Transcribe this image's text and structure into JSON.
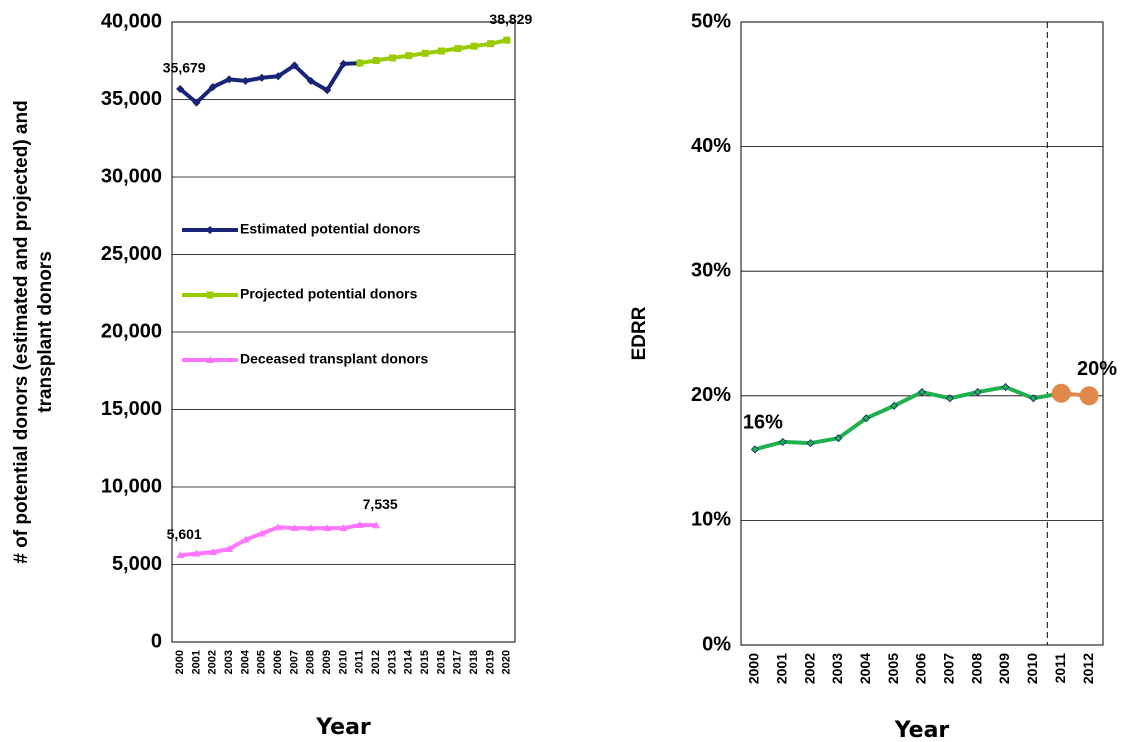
{
  "chart_data": [
    {
      "type": "line",
      "ylabel": [
        "# of potential donors (estimated and projected) and",
        "transplant donors"
      ],
      "xlabel": "Year",
      "categories": [
        "2000",
        "2001",
        "2002",
        "2003",
        "2004",
        "2005",
        "2006",
        "2007",
        "2008",
        "2009",
        "2010",
        "2011",
        "2012",
        "2013",
        "2014",
        "2015",
        "2016",
        "2017",
        "2018",
        "2019",
        "2020"
      ],
      "series": [
        {
          "name": "Estimated potential donors",
          "color": "#1a2476",
          "marker": "diamond",
          "values": [
            35679,
            34800,
            35800,
            36300,
            36200,
            36400,
            36500,
            37200,
            36200,
            35600,
            37300,
            37350,
            null,
            null,
            null,
            null,
            null,
            null,
            null,
            null,
            null
          ],
          "value_labels": [
            "35,679",
            null,
            null,
            null,
            null,
            null,
            null,
            null,
            null,
            null,
            null,
            null,
            null,
            null,
            null,
            null,
            null,
            null,
            null,
            null,
            null
          ]
        },
        {
          "name": "Projected potential donors",
          "color": "#99cc00",
          "marker": "square",
          "values": [
            null,
            null,
            null,
            null,
            null,
            null,
            null,
            null,
            null,
            null,
            null,
            37350,
            37520,
            37680,
            37830,
            37980,
            38130,
            38290,
            38440,
            38600,
            38829
          ],
          "value_labels": [
            null,
            null,
            null,
            null,
            null,
            null,
            null,
            null,
            null,
            null,
            null,
            null,
            null,
            null,
            null,
            null,
            null,
            null,
            null,
            null,
            "38,829"
          ]
        },
        {
          "name": "Deceased transplant donors",
          "color": "#ff77ff",
          "marker": "triangle",
          "values": [
            5601,
            5700,
            5800,
            6000,
            6600,
            7000,
            7400,
            7350,
            7350,
            7350,
            7350,
            7550,
            7535,
            null,
            null,
            null,
            null,
            null,
            null,
            null,
            null
          ],
          "value_labels": [
            "5,601",
            null,
            null,
            null,
            null,
            null,
            null,
            null,
            null,
            null,
            null,
            null,
            "7,535",
            null,
            null,
            null,
            null,
            null,
            null,
            null,
            null
          ]
        }
      ],
      "ylim": [
        0,
        40000
      ],
      "yticks": [
        0,
        {
          "value": 5000,
          "label": "5,000"
        },
        {
          "value": 10000,
          "label": "10,000"
        },
        {
          "value": 15000,
          "label": "15,000"
        },
        {
          "value": 20000,
          "label": "20,000"
        },
        {
          "value": 25000,
          "label": "25,000"
        },
        {
          "value": 30000,
          "label": "30,000"
        },
        {
          "value": 35000,
          "label": "35,000"
        },
        {
          "value": 40000,
          "label": "40,000"
        }
      ],
      "grid": true,
      "legend": "center-left"
    },
    {
      "type": "line",
      "ylabel": [
        "EDRR"
      ],
      "xlabel": "Year",
      "categories": [
        "2000",
        "2001",
        "2002",
        "2003",
        "2004",
        "2005",
        "2006",
        "2007",
        "2008",
        "2009",
        "2010",
        "2011",
        "2012"
      ],
      "series": [
        {
          "color": "#1fb050",
          "marker": "diamond",
          "values": [
            15.7,
            16.3,
            16.2,
            16.6,
            18.2,
            19.2,
            20.3,
            19.8,
            20.3,
            20.7,
            19.8,
            20.2,
            null
          ],
          "value_labels": [
            "16%",
            null,
            null,
            null,
            null,
            null,
            null,
            null,
            null,
            null,
            null,
            null,
            null
          ]
        },
        {
          "color": "#e0894a",
          "marker": "circle",
          "values": [
            null,
            null,
            null,
            null,
            null,
            null,
            null,
            null,
            null,
            null,
            null,
            20.2,
            20.0
          ],
          "value_labels": [
            null,
            null,
            null,
            null,
            null,
            null,
            null,
            null,
            null,
            null,
            null,
            null,
            "20%"
          ]
        }
      ],
      "ylim": [
        0,
        50
      ],
      "yticks": [
        {
          "value": 0,
          "label": "0%"
        },
        {
          "value": 10,
          "label": "10%"
        },
        {
          "value": 20,
          "label": "20%"
        },
        {
          "value": 30,
          "label": "30%"
        },
        {
          "value": 40,
          "label": "40%"
        },
        {
          "value": 50,
          "label": "50%"
        }
      ],
      "grid": true,
      "dashed_vline": true
    }
  ]
}
